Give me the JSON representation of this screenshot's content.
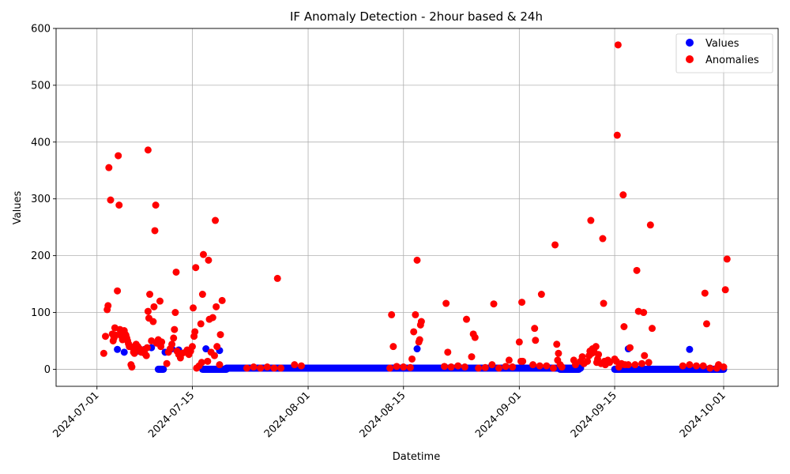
{
  "chart_data": {
    "type": "scatter",
    "title": "IF Anomaly Detection - 2hour based & 24h",
    "xlabel": "Datetime",
    "ylabel": "Values",
    "x_axis_type": "date",
    "xlim": [
      "2024-06-25",
      "2024-10-09"
    ],
    "ylim": [
      -30,
      600
    ],
    "x_ticks": [
      "2024-07-01",
      "2024-07-15",
      "2024-08-01",
      "2024-08-15",
      "2024-09-01",
      "2024-09-15",
      "2024-10-01"
    ],
    "y_ticks": [
      0,
      100,
      200,
      300,
      400,
      500,
      600
    ],
    "grid": true,
    "legend": {
      "position": "top-right"
    },
    "colors": {
      "values": "#0000ff",
      "anomalies": "#ff0000"
    },
    "series": [
      {
        "name": "Values",
        "color": "#0000ff",
        "baseline_segments": [
          {
            "start": "2024-07-10",
            "end": "2024-07-10 18:00",
            "y": 0
          },
          {
            "start": "2024-07-16 12:00",
            "end": "2024-07-20",
            "y": 0
          },
          {
            "start": "2024-07-20",
            "end": "2024-08-12",
            "y": 2
          },
          {
            "start": "2024-08-12",
            "end": "2024-09-10",
            "y": 2
          },
          {
            "start": "2024-09-07",
            "end": "2024-09-09 18:00",
            "y": 0
          },
          {
            "start": "2024-09-15",
            "end": "2024-10-01",
            "y": 0
          }
        ],
        "points": [
          [
            "2024-07-04",
            35
          ],
          [
            "2024-07-05",
            30
          ],
          [
            "2024-07-07",
            32
          ],
          [
            "2024-07-08",
            35
          ],
          [
            "2024-07-09",
            38
          ],
          [
            "2024-07-11",
            30
          ],
          [
            "2024-07-12",
            36
          ],
          [
            "2024-07-13",
            34
          ],
          [
            "2024-07-17",
            36
          ],
          [
            "2024-07-19",
            33
          ],
          [
            "2024-08-17",
            36
          ],
          [
            "2024-09-17",
            36
          ],
          [
            "2024-09-26",
            35
          ]
        ]
      },
      {
        "name": "Anomalies",
        "color": "#ff0000",
        "points": [
          [
            "2024-07-02",
            28
          ],
          [
            "2024-07-02 06:00",
            58
          ],
          [
            "2024-07-02 12:00",
            105
          ],
          [
            "2024-07-02 15:00",
            112
          ],
          [
            "2024-07-02 18:00",
            355
          ],
          [
            "2024-07-03",
            298
          ],
          [
            "2024-07-03 06:00",
            62
          ],
          [
            "2024-07-03 09:00",
            50
          ],
          [
            "2024-07-03 12:00",
            55
          ],
          [
            "2024-07-03 15:00",
            73
          ],
          [
            "2024-07-03 18:00",
            60
          ],
          [
            "2024-07-04",
            138
          ],
          [
            "2024-07-04 03:00",
            376
          ],
          [
            "2024-07-04 06:00",
            289
          ],
          [
            "2024-07-04 09:00",
            70
          ],
          [
            "2024-07-04 12:00",
            65
          ],
          [
            "2024-07-04 15:00",
            58
          ],
          [
            "2024-07-04 18:00",
            52
          ],
          [
            "2024-07-05",
            68
          ],
          [
            "2024-07-05 03:00",
            62
          ],
          [
            "2024-07-05 06:00",
            60
          ],
          [
            "2024-07-05 09:00",
            55
          ],
          [
            "2024-07-05 12:00",
            50
          ],
          [
            "2024-07-05 15:00",
            45
          ],
          [
            "2024-07-05 18:00",
            40
          ],
          [
            "2024-07-06",
            8
          ],
          [
            "2024-07-06 03:00",
            4
          ],
          [
            "2024-07-06 06:00",
            38
          ],
          [
            "2024-07-06 09:00",
            30
          ],
          [
            "2024-07-06 12:00",
            28
          ],
          [
            "2024-07-06 15:00",
            42
          ],
          [
            "2024-07-06 18:00",
            44
          ],
          [
            "2024-07-07",
            40
          ],
          [
            "2024-07-07 06:00",
            36
          ],
          [
            "2024-07-07 12:00",
            30
          ],
          [
            "2024-07-07 18:00",
            34
          ],
          [
            "2024-07-08",
            28
          ],
          [
            "2024-07-08 06:00",
            24
          ],
          [
            "2024-07-08 09:00",
            38
          ],
          [
            "2024-07-08 12:00",
            102
          ],
          [
            "2024-07-08 15:00",
            90
          ],
          [
            "2024-07-08 18:00",
            132
          ],
          [
            "2024-07-08 12:00",
            386
          ],
          [
            "2024-07-09",
            50
          ],
          [
            "2024-07-09 06:00",
            84
          ],
          [
            "2024-07-09 09:00",
            110
          ],
          [
            "2024-07-09 12:00",
            244
          ],
          [
            "2024-07-09 15:00",
            289
          ],
          [
            "2024-07-09 18:00",
            46
          ],
          [
            "2024-07-10",
            52
          ],
          [
            "2024-07-10 06:00",
            120
          ],
          [
            "2024-07-10 09:00",
            40
          ],
          [
            "2024-07-10 12:00",
            48
          ],
          [
            "2024-07-11 06:00",
            10
          ],
          [
            "2024-07-11 12:00",
            30
          ],
          [
            "2024-07-11 18:00",
            36
          ],
          [
            "2024-07-12",
            44
          ],
          [
            "2024-07-12 06:00",
            55
          ],
          [
            "2024-07-12 09:00",
            70
          ],
          [
            "2024-07-12 12:00",
            100
          ],
          [
            "2024-07-12 15:00",
            171
          ],
          [
            "2024-07-12 18:00",
            32
          ],
          [
            "2024-07-13",
            26
          ],
          [
            "2024-07-13 06:00",
            20
          ],
          [
            "2024-07-13 12:00",
            28
          ],
          [
            "2024-07-14",
            30
          ],
          [
            "2024-07-14 06:00",
            34
          ],
          [
            "2024-07-14 12:00",
            26
          ],
          [
            "2024-07-14 18:00",
            32
          ],
          [
            "2024-07-15",
            40
          ],
          [
            "2024-07-15 03:00",
            108
          ],
          [
            "2024-07-15 06:00",
            58
          ],
          [
            "2024-07-15 09:00",
            66
          ],
          [
            "2024-07-15 12:00",
            179
          ],
          [
            "2024-07-15 15:00",
            2
          ],
          [
            "2024-07-16",
            6
          ],
          [
            "2024-07-16 06:00",
            80
          ],
          [
            "2024-07-16 09:00",
            12
          ],
          [
            "2024-07-16 12:00",
            132
          ],
          [
            "2024-07-16 15:00",
            202
          ],
          [
            "2024-07-17 06:00",
            14
          ],
          [
            "2024-07-17 09:00",
            192
          ],
          [
            "2024-07-17 12:00",
            88
          ],
          [
            "2024-07-17 18:00",
            30
          ],
          [
            "2024-07-18",
            91
          ],
          [
            "2024-07-18 06:00",
            24
          ],
          [
            "2024-07-18 09:00",
            262
          ],
          [
            "2024-07-18 12:00",
            110
          ],
          [
            "2024-07-18 15:00",
            40
          ],
          [
            "2024-07-19",
            8
          ],
          [
            "2024-07-19 03:00",
            61
          ],
          [
            "2024-07-19 09:00",
            121
          ],
          [
            "2024-07-23",
            2
          ],
          [
            "2024-07-24",
            4
          ],
          [
            "2024-07-25",
            2
          ],
          [
            "2024-07-26",
            4
          ],
          [
            "2024-07-27",
            2
          ],
          [
            "2024-07-27 12:00",
            160
          ],
          [
            "2024-07-28",
            2
          ],
          [
            "2024-07-30",
            8
          ],
          [
            "2024-07-31",
            6
          ],
          [
            "2024-08-13",
            2
          ],
          [
            "2024-08-13 06:00",
            96
          ],
          [
            "2024-08-13 12:00",
            40
          ],
          [
            "2024-08-14",
            5
          ],
          [
            "2024-08-15",
            4
          ],
          [
            "2024-08-16",
            3
          ],
          [
            "2024-08-16 06:00",
            18
          ],
          [
            "2024-08-16 12:00",
            66
          ],
          [
            "2024-08-16 18:00",
            96
          ],
          [
            "2024-08-17",
            192
          ],
          [
            "2024-08-17 06:00",
            48
          ],
          [
            "2024-08-17 09:00",
            52
          ],
          [
            "2024-08-17 12:00",
            78
          ],
          [
            "2024-08-17 15:00",
            84
          ],
          [
            "2024-08-21",
            5
          ],
          [
            "2024-08-21 06:00",
            116
          ],
          [
            "2024-08-21 12:00",
            30
          ],
          [
            "2024-08-22",
            4
          ],
          [
            "2024-08-23",
            6
          ],
          [
            "2024-08-24",
            4
          ],
          [
            "2024-08-24 06:00",
            88
          ],
          [
            "2024-08-25",
            22
          ],
          [
            "2024-08-25 06:00",
            62
          ],
          [
            "2024-08-25 12:00",
            56
          ],
          [
            "2024-08-26",
            2
          ],
          [
            "2024-08-27",
            3
          ],
          [
            "2024-08-28",
            8
          ],
          [
            "2024-08-28 06:00",
            115
          ],
          [
            "2024-08-29",
            2
          ],
          [
            "2024-08-30",
            5
          ],
          [
            "2024-08-30 12:00",
            16
          ],
          [
            "2024-08-31",
            4
          ],
          [
            "2024-09-01",
            48
          ],
          [
            "2024-09-01 06:00",
            14
          ],
          [
            "2024-09-01 09:00",
            118
          ],
          [
            "2024-09-01 12:00",
            14
          ],
          [
            "2024-09-03",
            8
          ],
          [
            "2024-09-03 06:00",
            72
          ],
          [
            "2024-09-03 09:00",
            51
          ],
          [
            "2024-09-04",
            6
          ],
          [
            "2024-09-04 06:00",
            132
          ],
          [
            "2024-09-05",
            6
          ],
          [
            "2024-09-06",
            2
          ],
          [
            "2024-09-06 06:00",
            219
          ],
          [
            "2024-09-06 12:00",
            44
          ],
          [
            "2024-09-06 15:00",
            16
          ],
          [
            "2024-09-06 18:00",
            28
          ],
          [
            "2024-09-07",
            8
          ],
          [
            "2024-09-07 06:00",
            4
          ],
          [
            "2024-09-09",
            16
          ],
          [
            "2024-09-09 06:00",
            8
          ],
          [
            "2024-09-10",
            14
          ],
          [
            "2024-09-10 06:00",
            22
          ],
          [
            "2024-09-10 12:00",
            10
          ],
          [
            "2024-09-11",
            14
          ],
          [
            "2024-09-11 06:00",
            24
          ],
          [
            "2024-09-11 09:00",
            32
          ],
          [
            "2024-09-11 12:00",
            262
          ],
          [
            "2024-09-11 15:00",
            28
          ],
          [
            "2024-09-11 18:00",
            36
          ],
          [
            "2024-09-12",
            30
          ],
          [
            "2024-09-12 06:00",
            40
          ],
          [
            "2024-09-12 09:00",
            12
          ],
          [
            "2024-09-12 12:00",
            18
          ],
          [
            "2024-09-12 15:00",
            26
          ],
          [
            "2024-09-13",
            10
          ],
          [
            "2024-09-13 06:00",
            230
          ],
          [
            "2024-09-13 09:00",
            116
          ],
          [
            "2024-09-13 12:00",
            14
          ],
          [
            "2024-09-13 15:00",
            8
          ],
          [
            "2024-09-14",
            16
          ],
          [
            "2024-09-14 06:00",
            12
          ],
          [
            "2024-09-15",
            18
          ],
          [
            "2024-09-15 06:00",
            14
          ],
          [
            "2024-09-15 09:00",
            412
          ],
          [
            "2024-09-15 12:00",
            571
          ],
          [
            "2024-09-15 15:00",
            4
          ],
          [
            "2024-09-16",
            10
          ],
          [
            "2024-09-16 06:00",
            307
          ],
          [
            "2024-09-16 09:00",
            75
          ],
          [
            "2024-09-16 12:00",
            8
          ],
          [
            "2024-09-17",
            8
          ],
          [
            "2024-09-17 06:00",
            38
          ],
          [
            "2024-09-18",
            8
          ],
          [
            "2024-09-18 06:00",
            174
          ],
          [
            "2024-09-18 12:00",
            102
          ],
          [
            "2024-09-19",
            10
          ],
          [
            "2024-09-19 06:00",
            100
          ],
          [
            "2024-09-19 09:00",
            24
          ],
          [
            "2024-09-20",
            12
          ],
          [
            "2024-09-20 06:00",
            254
          ],
          [
            "2024-09-20 12:00",
            72
          ],
          [
            "2024-09-25",
            6
          ],
          [
            "2024-09-26",
            8
          ],
          [
            "2024-09-27",
            6
          ],
          [
            "2024-09-28",
            6
          ],
          [
            "2024-09-28 06:00",
            134
          ],
          [
            "2024-09-28 12:00",
            80
          ],
          [
            "2024-09-29",
            2
          ],
          [
            "2024-09-30",
            2
          ],
          [
            "2024-09-30 06:00",
            8
          ],
          [
            "2024-10-01",
            4
          ],
          [
            "2024-10-01 06:00",
            140
          ],
          [
            "2024-10-01 12:00",
            194
          ]
        ]
      }
    ]
  }
}
